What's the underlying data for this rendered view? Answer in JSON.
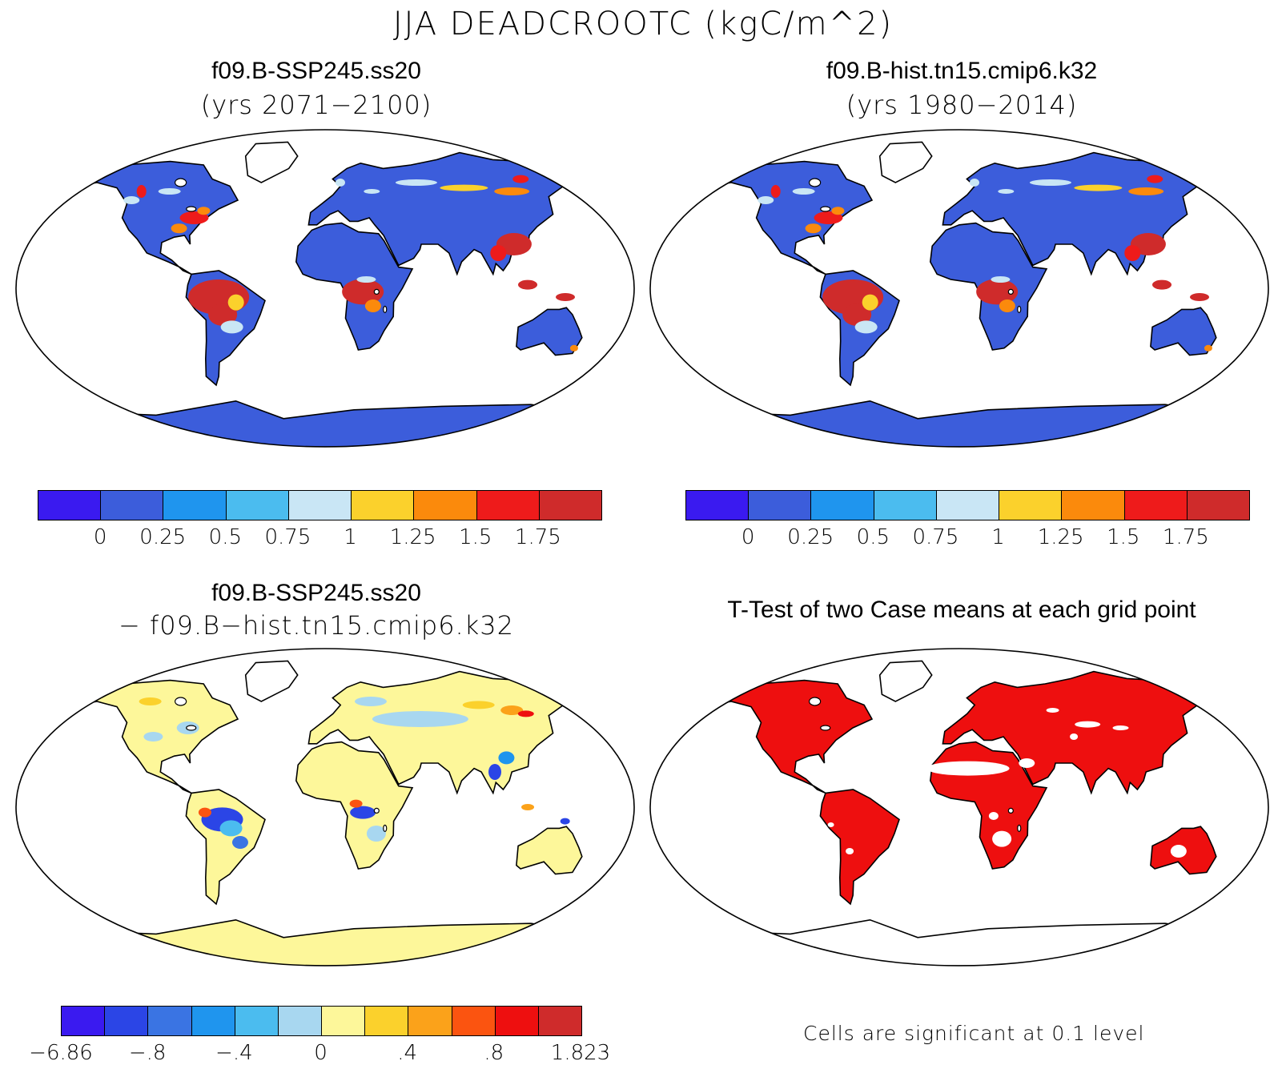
{
  "title": "JJA DEADCROOTC (kgC/m^2)",
  "panels": {
    "tl": {
      "title": "f09.B-SSP245.ss20",
      "subtitle": "(yrs 2071−2100)"
    },
    "tr": {
      "title": "f09.B-hist.tn15.cmip6.k32",
      "subtitle": "(yrs 1980−2014)"
    },
    "bl": {
      "title": "f09.B-SSP245.ss20",
      "subtitle": "− f09.B−hist.tn15.cmip6.k32"
    },
    "br": {
      "title": "T-Test of two Case means at each grid point"
    }
  },
  "colorbars": {
    "absolute": {
      "colors": [
        "#3a1af0",
        "#3c5ddb",
        "#1f95ee",
        "#4bbcef",
        "#c9e6f5",
        "#fbd12c",
        "#fb8a0c",
        "#ee1b1b",
        "#cf2b2b"
      ],
      "labels": [
        "0",
        "0.25",
        "0.5",
        "0.75",
        "1",
        "1.25",
        "1.5",
        "1.75"
      ]
    },
    "difference": {
      "colors": [
        "#3a1af0",
        "#2b45e6",
        "#3a74e3",
        "#1f95ee",
        "#4bbcef",
        "#a8d7f0",
        "#fdf79a",
        "#fbd12c",
        "#fba21a",
        "#fb5410",
        "#ee0f0f",
        "#cf2b2b"
      ],
      "labels": [
        "−6.86",
        "−.8",
        "−.4",
        "0",
        ".4",
        ".8",
        "1.823"
      ]
    }
  },
  "significance_note": "Cells are significant at 0.1 level"
}
